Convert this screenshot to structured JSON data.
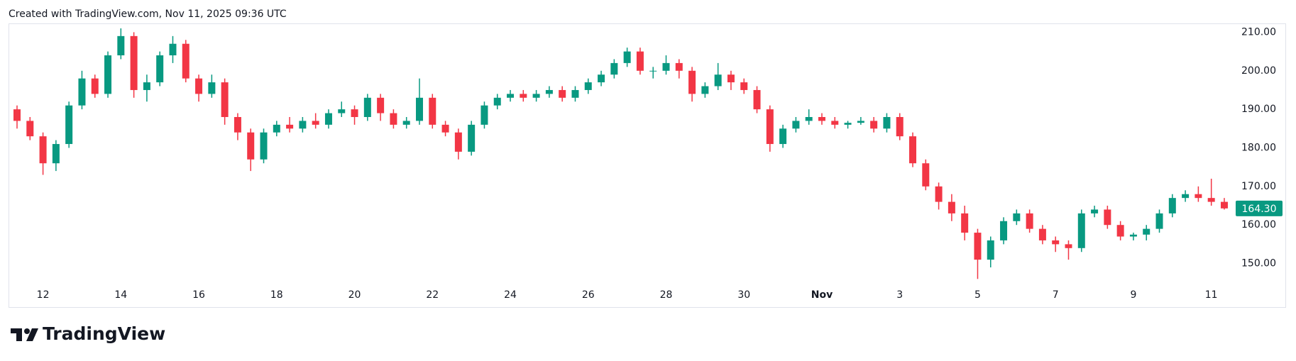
{
  "header": {
    "text": "Created with TradingView.com, Nov 11, 2025 09:36 UTC"
  },
  "footer": {
    "logo": "TradingView"
  },
  "chart_data": {
    "type": "candlestick",
    "categories": [
      null,
      null,
      "12",
      null,
      null,
      null,
      null,
      null,
      "14",
      null,
      null,
      null,
      null,
      null,
      "16",
      null,
      null,
      null,
      null,
      null,
      "18",
      null,
      null,
      null,
      null,
      null,
      "20",
      null,
      null,
      null,
      null,
      null,
      "22",
      null,
      null,
      null,
      null,
      null,
      "24",
      null,
      null,
      null,
      null,
      null,
      "26",
      null,
      null,
      null,
      null,
      null,
      "28",
      null,
      null,
      null,
      null,
      null,
      "30",
      null,
      null,
      null,
      null,
      null,
      "Nov",
      null,
      null,
      null,
      null,
      null,
      "3",
      null,
      null,
      null,
      null,
      null,
      "5",
      null,
      null,
      null,
      null,
      null,
      "7",
      null,
      null,
      null,
      null,
      null,
      "9",
      null,
      null,
      null,
      null,
      null,
      "11",
      null
    ],
    "open": [
      190,
      187,
      183,
      176,
      181,
      191,
      198,
      194,
      204,
      209,
      195,
      197,
      204,
      207,
      198,
      194,
      197,
      188,
      184,
      177,
      184,
      186,
      185,
      187,
      186,
      189,
      190,
      188,
      193,
      189,
      186,
      187,
      193,
      186,
      184,
      179,
      186,
      191,
      193,
      194,
      193,
      194,
      195,
      193,
      195,
      197,
      199,
      202,
      205,
      200,
      200,
      202,
      200,
      194,
      196,
      199,
      197,
      195,
      190,
      181,
      185,
      187,
      188,
      187,
      186,
      186.5,
      187,
      185,
      188,
      183,
      176,
      170,
      166,
      163,
      158,
      151,
      156,
      161,
      163,
      159,
      156,
      155,
      154,
      163,
      164,
      160,
      157,
      157.5,
      159,
      163,
      167,
      168,
      167,
      166
    ],
    "high": [
      191,
      188,
      184,
      182,
      192,
      200,
      199,
      205,
      211,
      210,
      199,
      205,
      209,
      208,
      199,
      199,
      198,
      189,
      185,
      185,
      187,
      188,
      188,
      189,
      190,
      192,
      191,
      194,
      194,
      190,
      188,
      198,
      194,
      187,
      185,
      187,
      192,
      194,
      195,
      195,
      195,
      196,
      196,
      196,
      198,
      200,
      203,
      206,
      206,
      201,
      204,
      203,
      201,
      197,
      202,
      200,
      198,
      196,
      191,
      186,
      188,
      190,
      189,
      188,
      187,
      188,
      188,
      189,
      189,
      184,
      177,
      171,
      168,
      165,
      159,
      157,
      162,
      164,
      164,
      160,
      157,
      156,
      164,
      165,
      165,
      161,
      158,
      160,
      164,
      168,
      169,
      170,
      172,
      167
    ],
    "low": [
      185,
      182,
      173,
      174,
      180,
      190,
      193,
      193,
      203,
      193,
      192,
      196,
      202,
      197,
      192,
      193,
      186,
      182,
      174,
      176,
      183,
      184,
      184,
      185,
      185,
      188,
      186,
      187,
      187,
      185,
      185,
      186,
      185,
      183,
      177,
      178,
      185,
      190,
      192,
      192,
      192,
      193,
      192,
      192,
      194,
      196,
      198,
      201,
      199,
      198,
      199,
      198,
      192,
      193,
      195,
      195,
      194,
      189,
      179,
      180,
      184,
      186,
      186,
      185,
      185,
      186,
      184,
      184,
      182,
      175,
      169,
      164,
      161,
      156,
      146,
      149,
      155,
      160,
      158,
      155,
      153,
      151,
      153,
      162,
      159,
      156,
      156,
      156,
      158,
      162,
      166,
      166,
      165,
      164
    ],
    "close": [
      187,
      183,
      176,
      181,
      191,
      198,
      194,
      204,
      209,
      195,
      197,
      204,
      207,
      198,
      194,
      197,
      188,
      184,
      177,
      184,
      186,
      185,
      187,
      186,
      189,
      190,
      188,
      193,
      189,
      186,
      187,
      193,
      186,
      184,
      179,
      186,
      191,
      193,
      194,
      193,
      194,
      195,
      193,
      195,
      197,
      199,
      202,
      205,
      200,
      200,
      202,
      200,
      194,
      196,
      199,
      197,
      195,
      190,
      181,
      185,
      187,
      188,
      187,
      186,
      186.5,
      187,
      185,
      188,
      183,
      176,
      170,
      166,
      163,
      158,
      151,
      156,
      161,
      163,
      159,
      156,
      155,
      154,
      163,
      164,
      160,
      157,
      157.5,
      159,
      163,
      167,
      168,
      167,
      166,
      164.3
    ],
    "up_color": "#089981",
    "down_color": "#f23645",
    "ylim": [
      144.4,
      212.1
    ],
    "yticks": [
      {
        "value": 150,
        "label": "150.00"
      },
      {
        "value": 160,
        "label": "160.00"
      },
      {
        "value": 170,
        "label": "170.00"
      },
      {
        "value": 180,
        "label": "180.00"
      },
      {
        "value": 190,
        "label": "190.00"
      },
      {
        "value": 200,
        "label": "200.00"
      },
      {
        "value": 210,
        "label": "210.00"
      }
    ],
    "last_price": {
      "value": 164.3,
      "label": "164.30"
    },
    "grid": false
  }
}
